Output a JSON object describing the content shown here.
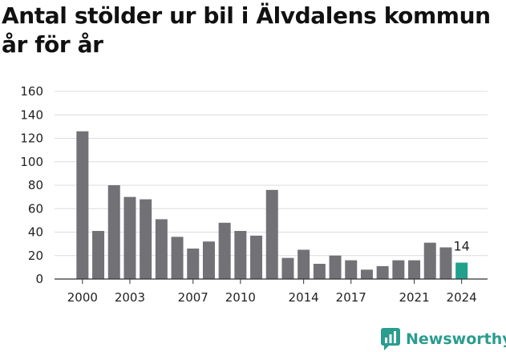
{
  "title": "Antal stölder ur bil i Älvdalens kommun år för år",
  "brand": {
    "name": "Newsworthy",
    "icon": "newsworthy-logo-icon"
  },
  "colors": {
    "bar": "#727176",
    "highlight": "#22a08e",
    "grid": "#dcdcdc",
    "axis": "#333333",
    "brand": "#2a9d8f"
  },
  "chart_data": {
    "type": "bar",
    "title": "Antal stölder ur bil i Älvdalens kommun år för år",
    "xlabel": "",
    "ylabel": "",
    "ylim": [
      0,
      160
    ],
    "yticks": [
      0,
      20,
      40,
      60,
      80,
      100,
      120,
      140,
      160
    ],
    "grid": true,
    "legend": "none",
    "categories": [
      2000,
      2001,
      2002,
      2003,
      2004,
      2005,
      2006,
      2007,
      2008,
      2009,
      2010,
      2011,
      2012,
      2013,
      2014,
      2015,
      2016,
      2017,
      2018,
      2019,
      2020,
      2021,
      2022,
      2023,
      2024
    ],
    "xtick_labels": [
      2000,
      2003,
      2007,
      2010,
      2014,
      2017,
      2021,
      2024
    ],
    "values": [
      126,
      41,
      80,
      70,
      68,
      51,
      36,
      26,
      32,
      48,
      41,
      37,
      76,
      18,
      25,
      13,
      20,
      16,
      8,
      11,
      16,
      16,
      31,
      27,
      14
    ],
    "highlight": {
      "category": 2024,
      "value": 14,
      "label": "14"
    }
  }
}
